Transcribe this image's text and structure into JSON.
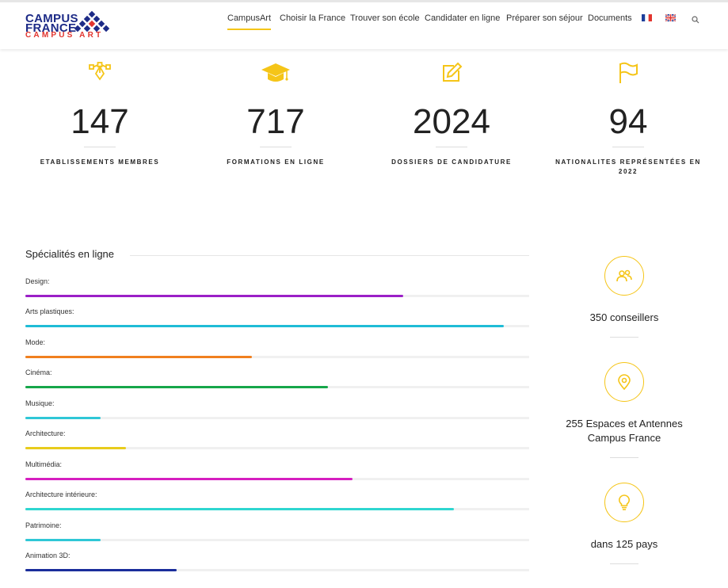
{
  "logo": {
    "word1": "CAMPUS",
    "word2": "FRANCE",
    "word3": "CAMPUS ART",
    "brand_color": "#1d2b87",
    "accent_color": "#e2352f"
  },
  "nav": {
    "items": [
      {
        "label": "CampusArt",
        "active": true
      },
      {
        "label": "Choisir la France"
      },
      {
        "label": "Trouver son école"
      },
      {
        "label": "Candidater en ligne"
      },
      {
        "label": "Préparer son séjour"
      },
      {
        "label": "Documents"
      }
    ],
    "flags": [
      "flag-fr-icon",
      "flag-uk-icon"
    ],
    "search_icon": "search-icon"
  },
  "accent": "#f5c518",
  "stats": [
    {
      "icon": "vector-pen-icon",
      "value": "147",
      "label": "ETABLISSEMENTS MEMBRES"
    },
    {
      "icon": "graduation-cap-icon",
      "value": "717",
      "label": "FORMATIONS EN LIGNE"
    },
    {
      "icon": "edit-icon",
      "value": "2024",
      "label": "DOSSIERS DE CANDIDATURE"
    },
    {
      "icon": "flag-icon",
      "value": "94",
      "label": "NATIONALITES REPRÉSENTÉES EN 2022"
    }
  ],
  "skills": {
    "title": "Spécialités en ligne",
    "items": [
      {
        "name": "Design:",
        "percent": 75,
        "color": "#9b1fc7"
      },
      {
        "name": "Arts plastiques:",
        "percent": 95,
        "color": "#1fbcd6"
      },
      {
        "name": "Mode:",
        "percent": 45,
        "color": "#f07f1e"
      },
      {
        "name": "Cinéma:",
        "percent": 60,
        "color": "#16a64a"
      },
      {
        "name": "Musique:",
        "percent": 15,
        "color": "#2fc7d6"
      },
      {
        "name": "Architecture:",
        "percent": 20,
        "color": "#e8cc1c"
      },
      {
        "name": "Multimédia:",
        "percent": 65,
        "color": "#d61fc0"
      },
      {
        "name": "Architecture intérieure:",
        "percent": 85,
        "color": "#2fd6d0"
      },
      {
        "name": "Patrimoine:",
        "percent": 15,
        "color": "#2fc7d6"
      },
      {
        "name": "Animation 3D:",
        "percent": 30,
        "color": "#1a2d9b"
      }
    ]
  },
  "side": [
    {
      "icon": "users-icon",
      "text": "350 conseillers"
    },
    {
      "icon": "map-pin-icon",
      "text": "255 Espaces et Antennes Campus France"
    },
    {
      "icon": "lightbulb-icon",
      "text": "dans 125 pays"
    }
  ]
}
